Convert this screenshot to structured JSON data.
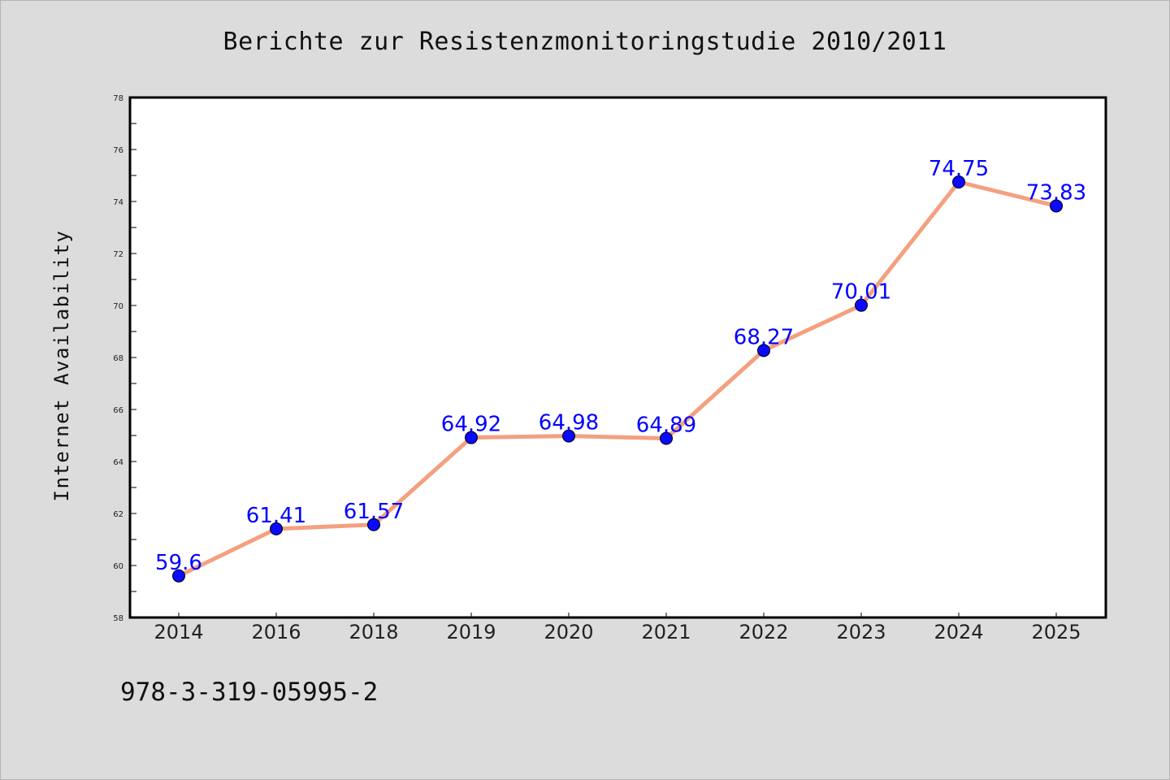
{
  "page": {
    "title": "Berichte zur Resistenzmonitoringstudie 2010/2011",
    "footer_text": "978-3-319-05995-2"
  },
  "colors": {
    "background": "#dcdcdc",
    "plot_background": "#ffffff",
    "line": "#f4a07f",
    "marker": "#0a0aff",
    "label": "#0000ff"
  },
  "chart_data": {
    "type": "line",
    "title": "Berichte zur Resistenzmonitoringstudie 2010/2011",
    "xlabel": "",
    "ylabel": "Internet Availability",
    "categories": [
      "2014",
      "2016",
      "2018",
      "2019",
      "2020",
      "2021",
      "2022",
      "2023",
      "2024",
      "2025"
    ],
    "series": [
      {
        "values": [
          59.6,
          61.41,
          61.57,
          64.92,
          64.98,
          64.89,
          68.27,
          70.01,
          74.75,
          73.83
        ],
        "data_labels": [
          "59.6",
          "61.41",
          "61.57",
          "64.92",
          "64.98",
          "64.89",
          "68.27",
          "70.01",
          "74.75",
          "73.83"
        ]
      }
    ],
    "ylim": [
      58,
      78
    ],
    "yticks": [
      58,
      60,
      62,
      64,
      66,
      68,
      70,
      72,
      74,
      76,
      78
    ],
    "grid": false,
    "legend": "none"
  }
}
